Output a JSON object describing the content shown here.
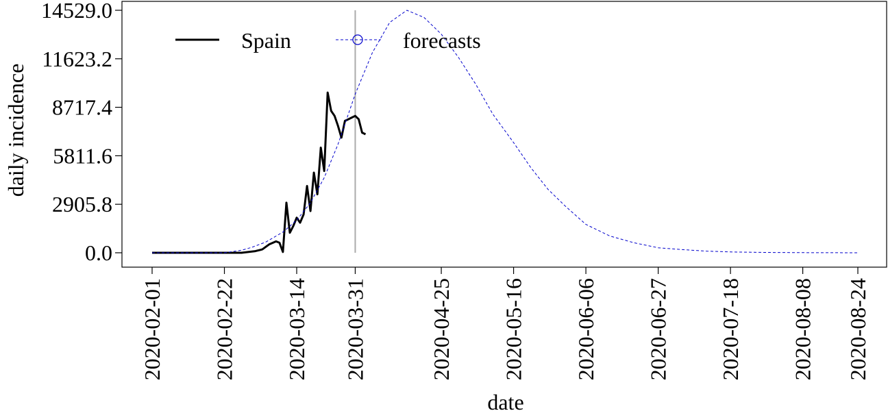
{
  "chart_data": {
    "type": "line",
    "xlabel": "date",
    "ylabel": "daily incidence",
    "xlim": [
      "2020-02-01",
      "2020-08-24"
    ],
    "ylim": [
      0,
      14529.0
    ],
    "y_ticks": [
      0,
      2905.8,
      5811.6,
      8717.4,
      11623.2,
      14529.0
    ],
    "y_tick_labels": [
      "0.0",
      "2905.8",
      "5811.6",
      "8717.4",
      "11623.2",
      "14529.0"
    ],
    "x_ticks": [
      "2020-02-01",
      "2020-02-22",
      "2020-03-14",
      "2020-03-31",
      "2020-04-25",
      "2020-05-16",
      "2020-06-06",
      "2020-06-27",
      "2020-07-18",
      "2020-08-08",
      "2020-08-24"
    ],
    "vline_date": "2020-03-31",
    "legend": {
      "position": "top-left",
      "entries": [
        "Spain",
        "forecasts"
      ]
    },
    "grid": false,
    "series": [
      {
        "name": "Spain",
        "style": "solid",
        "color": "#000000",
        "x": [
          "2020-02-01",
          "2020-02-27",
          "2020-03-02",
          "2020-03-04",
          "2020-03-06",
          "2020-03-08",
          "2020-03-09",
          "2020-03-10",
          "2020-03-11",
          "2020-03-12",
          "2020-03-13",
          "2020-03-14",
          "2020-03-15",
          "2020-03-16",
          "2020-03-17",
          "2020-03-18",
          "2020-03-19",
          "2020-03-20",
          "2020-03-21",
          "2020-03-22",
          "2020-03-23",
          "2020-03-24",
          "2020-03-25",
          "2020-03-26",
          "2020-03-27",
          "2020-03-28",
          "2020-03-29",
          "2020-03-30",
          "2020-03-31",
          "2020-04-01",
          "2020-04-02",
          "2020-04-03"
        ],
        "y": [
          0,
          0,
          100,
          200,
          500,
          680,
          600,
          50,
          3000,
          1200,
          1600,
          2100,
          1800,
          2300,
          4000,
          2500,
          4800,
          3500,
          6300,
          4900,
          9600,
          8500,
          8200,
          7600,
          6900,
          7900,
          8000,
          8100,
          8200,
          8000,
          7200,
          7100
        ]
      },
      {
        "name": "forecasts",
        "style": "dashed",
        "color": "#0000cc",
        "x": [
          "2020-02-01",
          "2020-02-22",
          "2020-02-27",
          "2020-03-01",
          "2020-03-05",
          "2020-03-10",
          "2020-03-14",
          "2020-03-18",
          "2020-03-22",
          "2020-03-26",
          "2020-03-31",
          "2020-04-05",
          "2020-04-10",
          "2020-04-15",
          "2020-04-20",
          "2020-04-25",
          "2020-04-30",
          "2020-05-05",
          "2020-05-10",
          "2020-05-16",
          "2020-05-21",
          "2020-05-26",
          "2020-05-31",
          "2020-06-06",
          "2020-06-13",
          "2020-06-20",
          "2020-06-27",
          "2020-07-04",
          "2020-07-11",
          "2020-07-18",
          "2020-07-28",
          "2020-08-08",
          "2020-08-24"
        ],
        "y": [
          0,
          0,
          150,
          330,
          640,
          1240,
          1950,
          3000,
          4500,
          6500,
          9500,
          12000,
          13800,
          14529,
          14100,
          13100,
          11700,
          10100,
          8300,
          6600,
          5100,
          3800,
          2800,
          1700,
          1000,
          600,
          300,
          190,
          100,
          50,
          20,
          8,
          0
        ]
      }
    ]
  }
}
